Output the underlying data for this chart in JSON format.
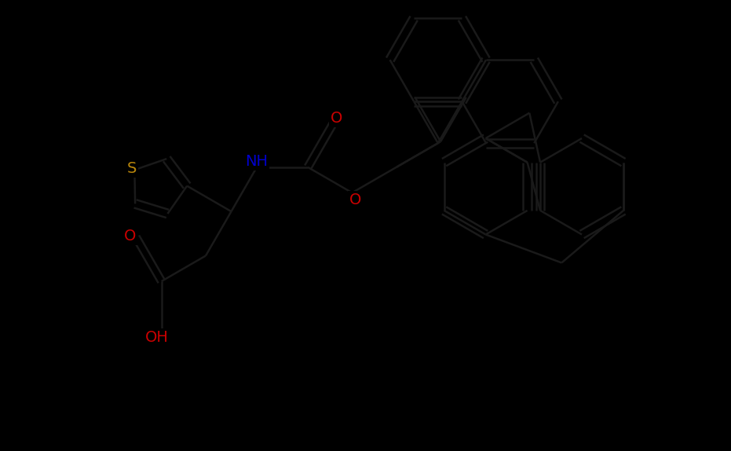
{
  "background_color": "#000000",
  "bond_color": "#000000",
  "bond_lw": 1.8,
  "S_color": "#b8860b",
  "N_color": "#0000cd",
  "O_color": "#cc0000",
  "label_fontsize": 14,
  "figsize": [
    9.31,
    5.74
  ],
  "dpi": 100,
  "xlim": [
    -1,
    10
  ],
  "ylim": [
    -1,
    6.5
  ]
}
